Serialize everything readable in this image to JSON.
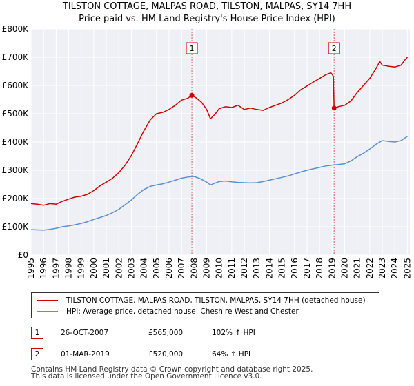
{
  "chart_data": {
    "type": "line",
    "title": "TILSTON COTTAGE, MALPAS ROAD, TILSTON, MALPAS, SY14 7HH",
    "subtitle": "Price paid vs. HM Land Registry's House Price Index (HPI)",
    "xlim": [
      1995.0,
      2025.2
    ],
    "ylim": [
      0,
      800000
    ],
    "x_ticks": [
      "1995",
      "1996",
      "1997",
      "1998",
      "1999",
      "2000",
      "2001",
      "2002",
      "2003",
      "2004",
      "2005",
      "2006",
      "2007",
      "2008",
      "2009",
      "2010",
      "2011",
      "2012",
      "2013",
      "2014",
      "2015",
      "2016",
      "2017",
      "2018",
      "2019",
      "2020",
      "2021",
      "2022",
      "2023",
      "2024",
      "2025"
    ],
    "y_ticks": [
      {
        "value": 0,
        "label": "£0"
      },
      {
        "value": 100000,
        "label": "£100K"
      },
      {
        "value": 200000,
        "label": "£200K"
      },
      {
        "value": 300000,
        "label": "£300K"
      },
      {
        "value": 400000,
        "label": "£400K"
      },
      {
        "value": 500000,
        "label": "£500K"
      },
      {
        "value": 600000,
        "label": "£600K"
      },
      {
        "value": 700000,
        "label": "£700K"
      },
      {
        "value": 800000,
        "label": "£800K"
      }
    ],
    "grid": true,
    "series": [
      {
        "name": "TILSTON COTTAGE, MALPAS ROAD, TILSTON, MALPAS, SY14 7HH (detached house)",
        "color": "#cc0000",
        "points": [
          [
            1995.0,
            182000
          ],
          [
            1995.5,
            180000
          ],
          [
            1996.0,
            176000
          ],
          [
            1996.5,
            182000
          ],
          [
            1997.0,
            180000
          ],
          [
            1997.5,
            190000
          ],
          [
            1998.0,
            198000
          ],
          [
            1998.5,
            205000
          ],
          [
            1999.0,
            208000
          ],
          [
            1999.5,
            215000
          ],
          [
            2000.0,
            228000
          ],
          [
            2000.5,
            245000
          ],
          [
            2001.0,
            258000
          ],
          [
            2001.5,
            272000
          ],
          [
            2002.0,
            292000
          ],
          [
            2002.5,
            318000
          ],
          [
            2003.0,
            352000
          ],
          [
            2003.5,
            395000
          ],
          [
            2004.0,
            440000
          ],
          [
            2004.5,
            478000
          ],
          [
            2005.0,
            500000
          ],
          [
            2005.5,
            505000
          ],
          [
            2006.0,
            515000
          ],
          [
            2006.5,
            530000
          ],
          [
            2007.0,
            548000
          ],
          [
            2007.5,
            555000
          ],
          [
            2007.82,
            565000
          ],
          [
            2008.2,
            555000
          ],
          [
            2008.6,
            540000
          ],
          [
            2009.0,
            515000
          ],
          [
            2009.3,
            482000
          ],
          [
            2009.7,
            500000
          ],
          [
            2010.0,
            518000
          ],
          [
            2010.5,
            525000
          ],
          [
            2011.0,
            522000
          ],
          [
            2011.5,
            530000
          ],
          [
            2012.0,
            515000
          ],
          [
            2012.5,
            520000
          ],
          [
            2013.0,
            515000
          ],
          [
            2013.5,
            512000
          ],
          [
            2014.0,
            522000
          ],
          [
            2014.5,
            530000
          ],
          [
            2015.0,
            538000
          ],
          [
            2015.5,
            550000
          ],
          [
            2016.0,
            565000
          ],
          [
            2016.5,
            585000
          ],
          [
            2017.0,
            598000
          ],
          [
            2017.5,
            612000
          ],
          [
            2018.0,
            625000
          ],
          [
            2018.5,
            638000
          ],
          [
            2018.9,
            645000
          ],
          [
            2019.0,
            640000
          ],
          [
            2019.1,
            632000
          ],
          [
            2019.16,
            520000
          ],
          [
            2019.5,
            525000
          ],
          [
            2020.0,
            530000
          ],
          [
            2020.5,
            545000
          ],
          [
            2021.0,
            575000
          ],
          [
            2021.5,
            600000
          ],
          [
            2022.0,
            625000
          ],
          [
            2022.5,
            660000
          ],
          [
            2022.8,
            685000
          ],
          [
            2023.0,
            672000
          ],
          [
            2023.5,
            668000
          ],
          [
            2024.0,
            665000
          ],
          [
            2024.5,
            672000
          ],
          [
            2024.8,
            690000
          ],
          [
            2025.0,
            700000
          ]
        ]
      },
      {
        "name": "HPI: Average price, detached house, Cheshire West and Chester",
        "color": "#5b8fd0",
        "points": [
          [
            1995.0,
            90000
          ],
          [
            1995.5,
            89000
          ],
          [
            1996.0,
            88000
          ],
          [
            1996.5,
            91000
          ],
          [
            1997.0,
            95000
          ],
          [
            1997.5,
            100000
          ],
          [
            1998.0,
            103000
          ],
          [
            1998.5,
            107000
          ],
          [
            1999.0,
            112000
          ],
          [
            1999.5,
            118000
          ],
          [
            2000.0,
            126000
          ],
          [
            2000.5,
            133000
          ],
          [
            2001.0,
            140000
          ],
          [
            2001.5,
            150000
          ],
          [
            2002.0,
            162000
          ],
          [
            2002.5,
            178000
          ],
          [
            2003.0,
            195000
          ],
          [
            2003.5,
            215000
          ],
          [
            2004.0,
            232000
          ],
          [
            2004.5,
            243000
          ],
          [
            2005.0,
            248000
          ],
          [
            2005.5,
            252000
          ],
          [
            2006.0,
            258000
          ],
          [
            2006.5,
            265000
          ],
          [
            2007.0,
            272000
          ],
          [
            2007.5,
            276000
          ],
          [
            2008.0,
            278000
          ],
          [
            2008.5,
            270000
          ],
          [
            2009.0,
            258000
          ],
          [
            2009.3,
            248000
          ],
          [
            2009.7,
            255000
          ],
          [
            2010.0,
            260000
          ],
          [
            2010.5,
            262000
          ],
          [
            2011.0,
            259000
          ],
          [
            2011.5,
            257000
          ],
          [
            2012.0,
            256000
          ],
          [
            2012.5,
            255000
          ],
          [
            2013.0,
            256000
          ],
          [
            2013.5,
            260000
          ],
          [
            2014.0,
            265000
          ],
          [
            2014.5,
            270000
          ],
          [
            2015.0,
            275000
          ],
          [
            2015.5,
            280000
          ],
          [
            2016.0,
            287000
          ],
          [
            2016.5,
            294000
          ],
          [
            2017.0,
            300000
          ],
          [
            2017.5,
            305000
          ],
          [
            2018.0,
            310000
          ],
          [
            2018.5,
            315000
          ],
          [
            2019.0,
            318000
          ],
          [
            2019.5,
            320000
          ],
          [
            2020.0,
            323000
          ],
          [
            2020.5,
            333000
          ],
          [
            2021.0,
            348000
          ],
          [
            2021.5,
            360000
          ],
          [
            2022.0,
            375000
          ],
          [
            2022.5,
            392000
          ],
          [
            2023.0,
            405000
          ],
          [
            2023.5,
            402000
          ],
          [
            2024.0,
            400000
          ],
          [
            2024.5,
            405000
          ],
          [
            2025.0,
            420000
          ]
        ]
      }
    ],
    "annotations": [
      {
        "label": "1",
        "x": 2007.82,
        "y": 565000
      },
      {
        "label": "2",
        "x": 2019.16,
        "y": 520000
      }
    ]
  },
  "legend": {
    "items": [
      {
        "label": "TILSTON COTTAGE, MALPAS ROAD, TILSTON, MALPAS, SY14 7HH (detached house)",
        "color": "#cc0000"
      },
      {
        "label": "HPI: Average price, detached house, Cheshire West and Chester",
        "color": "#5b8fd0"
      }
    ]
  },
  "sales": [
    {
      "num": "1",
      "date": "26-OCT-2007",
      "price": "£565,000",
      "hpi": "102% ↑ HPI"
    },
    {
      "num": "2",
      "date": "01-MAR-2019",
      "price": "£520,000",
      "hpi": "64% ↑ HPI"
    }
  ],
  "footer": {
    "line1": "Contains HM Land Registry data © Crown copyright and database right 2025.",
    "line2": "This data is licensed under the Open Government Licence v3.0."
  }
}
